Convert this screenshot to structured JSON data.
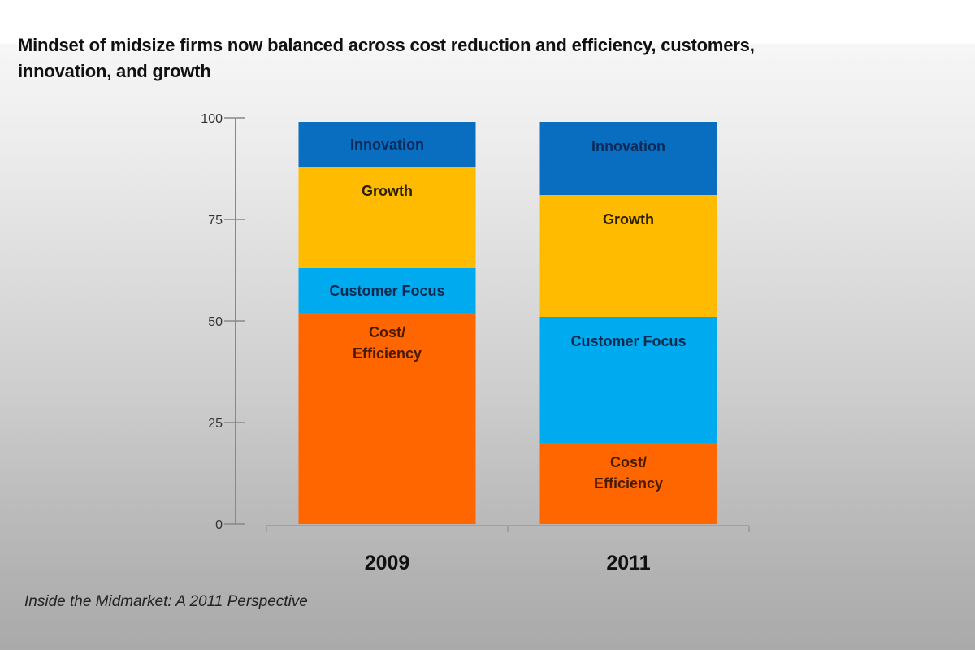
{
  "title": "Mindset of midsize firms now balanced across cost reduction and efficiency, customers, innovation, and growth",
  "source": "Inside the Midmarket: A 2011 Perspective",
  "chart_data": {
    "type": "bar",
    "stacked": true,
    "title": "Mindset of midsize firms now balanced across cost reduction and efficiency, customers, innovation, and growth",
    "xlabel": "",
    "ylabel": "",
    "categories": [
      "2009",
      "2011"
    ],
    "ylim": [
      0,
      100
    ],
    "yticks": [
      0,
      25,
      50,
      75,
      100
    ],
    "grid": false,
    "legend": "none (segments labeled inline)",
    "series": [
      {
        "name": "Cost/ Efficiency",
        "label_lines": [
          "Cost/",
          "Efficiency"
        ],
        "color": "#ff6600",
        "label_color": "#4a1a00",
        "values": [
          52,
          20
        ]
      },
      {
        "name": "Customer Focus",
        "label_lines": [
          "Customer Focus"
        ],
        "color": "#00aaee",
        "label_color": "#0b2a50",
        "values": [
          11,
          31
        ]
      },
      {
        "name": "Growth",
        "label_lines": [
          "Growth"
        ],
        "color": "#ffbb00",
        "label_color": "#2a2000",
        "values": [
          25,
          30
        ]
      },
      {
        "name": "Innovation",
        "label_lines": [
          "Innovation"
        ],
        "color": "#0a6ec0",
        "label_color": "#0b2a5a",
        "values": [
          11,
          18
        ]
      }
    ]
  }
}
